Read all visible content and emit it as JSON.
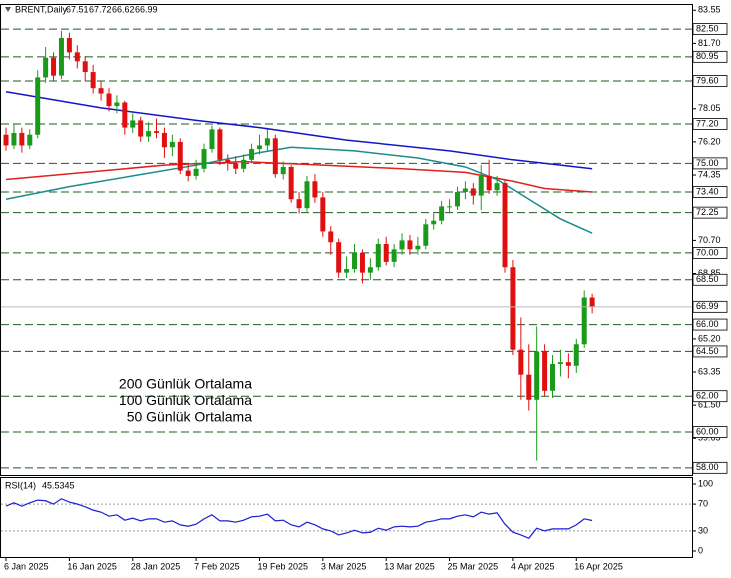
{
  "chart_data": [
    {
      "type": "candlestick",
      "title": "BRENT,Daily",
      "open": [
        76.6,
        76.0,
        76.7,
        76.0,
        76.6,
        79.8,
        80.9,
        79.9,
        82.0,
        81.2,
        80.7,
        80.1,
        79.2,
        78.9,
        78.2,
        78.4,
        77.0,
        77.4,
        76.5,
        76.8,
        76.7,
        75.9,
        76.2,
        74.6,
        74.3,
        74.7,
        75.8,
        76.9,
        75.2,
        75.0,
        74.7,
        75.2,
        75.8,
        76.0,
        76.4,
        74.4,
        74.8,
        73.0,
        72.5,
        74.0,
        73.1,
        71.2,
        70.6,
        68.9,
        69.1,
        70.0,
        68.9,
        69.2,
        70.5,
        69.5,
        70.2,
        70.7,
        70.2,
        70.4,
        71.6,
        71.8,
        72.6,
        72.6,
        73.4,
        73.6,
        73.2,
        74.3,
        73.5,
        73.9,
        69.2,
        64.6,
        63.2,
        61.8,
        64.5,
        62.3,
        63.8,
        63.9,
        63.7,
        64.9,
        67.51
      ],
      "high": [
        77.0,
        77.2,
        77.0,
        76.9,
        80.2,
        81.5,
        81.2,
        82.4,
        82.3,
        81.6,
        81.0,
        80.5,
        79.6,
        79.2,
        78.8,
        78.5,
        77.8,
        77.6,
        77.3,
        77.5,
        77.0,
        76.6,
        76.4,
        75.0,
        75.2,
        76.1,
        77.1,
        77.0,
        75.5,
        75.4,
        75.5,
        76.1,
        76.6,
        76.9,
        76.6,
        75.1,
        74.9,
        73.4,
        74.3,
        74.4,
        73.4,
        71.5,
        70.8,
        69.8,
        70.5,
        70.2,
        69.7,
        70.8,
        70.9,
        70.5,
        71.1,
        71.0,
        70.9,
        71.9,
        72.2,
        72.9,
        73.0,
        73.7,
        74.0,
        73.9,
        74.9,
        75.2,
        74.3,
        74.1,
        69.6,
        66.4,
        64.9,
        65.9,
        64.9,
        64.3,
        64.6,
        64.4,
        65.2,
        67.9,
        67.72
      ],
      "low": [
        75.7,
        75.8,
        75.6,
        75.8,
        76.4,
        79.5,
        79.6,
        79.7,
        80.8,
        80.3,
        79.6,
        78.9,
        78.5,
        77.9,
        77.8,
        76.6,
        76.7,
        76.2,
        76.2,
        76.4,
        75.3,
        75.4,
        74.4,
        74.0,
        74.1,
        74.5,
        75.6,
        74.9,
        74.6,
        74.4,
        74.5,
        75.0,
        75.5,
        75.7,
        74.2,
        74.1,
        72.8,
        72.2,
        72.3,
        72.8,
        70.9,
        69.9,
        68.6,
        68.6,
        68.9,
        68.3,
        68.5,
        69.0,
        69.3,
        69.2,
        69.9,
        69.9,
        69.9,
        70.2,
        71.3,
        71.6,
        72.2,
        72.4,
        73.0,
        72.7,
        72.4,
        73.3,
        73.2,
        68.9,
        64.3,
        61.8,
        61.2,
        58.4,
        62.0,
        61.9,
        63.1,
        63.0,
        63.3,
        64.7,
        66.62
      ],
      "close": [
        76.0,
        76.7,
        76.0,
        76.6,
        79.8,
        80.9,
        79.9,
        82.0,
        81.2,
        80.7,
        80.1,
        79.2,
        78.9,
        78.2,
        78.4,
        77.0,
        77.4,
        76.5,
        76.8,
        76.7,
        75.9,
        76.2,
        74.6,
        74.3,
        74.7,
        75.8,
        76.9,
        75.2,
        75.0,
        74.7,
        75.2,
        75.8,
        76.0,
        76.4,
        74.4,
        74.8,
        73.0,
        72.5,
        74.0,
        73.1,
        71.2,
        70.6,
        68.9,
        69.1,
        70.0,
        68.9,
        69.2,
        70.5,
        69.5,
        70.2,
        70.7,
        70.2,
        70.4,
        71.6,
        71.8,
        72.6,
        72.6,
        73.4,
        73.6,
        73.2,
        74.3,
        73.5,
        73.9,
        69.2,
        64.6,
        63.2,
        61.8,
        64.5,
        62.3,
        63.8,
        63.9,
        63.7,
        64.9,
        67.51,
        66.99
      ],
      "up_color": "#1a9a1a",
      "down_color": "#e01010",
      "series": [
        {
          "name": "200 Günlük Ortalama",
          "color": "#1515c8",
          "x": [
            0,
            12,
            24,
            32,
            43,
            56,
            64,
            70,
            74
          ],
          "values": [
            79.0,
            78.1,
            77.4,
            77.0,
            76.3,
            75.7,
            75.2,
            74.9,
            74.7
          ]
        },
        {
          "name": "100 Günlük Ortalama",
          "color": "#e0201a",
          "x": [
            0,
            10,
            20,
            30,
            40,
            50,
            58,
            64,
            68,
            74
          ],
          "values": [
            74.1,
            74.5,
            74.9,
            75.1,
            74.9,
            74.7,
            74.5,
            74.0,
            73.6,
            73.4
          ]
        },
        {
          "name": "50 Günlük Ortalama",
          "color": "#1a8c8c",
          "x": [
            0,
            8,
            16,
            24,
            32,
            36,
            44,
            52,
            58,
            62,
            66,
            70,
            74
          ],
          "values": [
            73.0,
            73.7,
            74.3,
            74.9,
            75.6,
            75.9,
            75.7,
            75.3,
            74.8,
            74.1,
            73.0,
            71.9,
            71.1
          ]
        }
      ],
      "xlim": [
        -0.76,
        86.61
      ],
      "ylim": [
        57.6,
        83.9
      ],
      "yticks": [
        {
          "value": 83.55,
          "label": "83.55"
        },
        {
          "value": 81.7,
          "label": "81.70"
        },
        {
          "value": 78.05,
          "label": "78.05"
        },
        {
          "value": 76.2,
          "label": "76.20"
        },
        {
          "value": 74.35,
          "label": "74.35"
        },
        {
          "value": 70.7,
          "label": "70.70"
        },
        {
          "value": 68.85,
          "label": "68.85"
        },
        {
          "value": 65.2,
          "label": "65.20"
        },
        {
          "value": 63.35,
          "label": "63.35"
        },
        {
          "value": 61.5,
          "label": "61.50"
        },
        {
          "value": 59.65,
          "label": "59.65"
        }
      ],
      "levels": [
        {
          "value": 82.5,
          "label": "82.50"
        },
        {
          "value": 80.95,
          "label": "80.95"
        },
        {
          "value": 79.6,
          "label": "79.60"
        },
        {
          "value": 77.2,
          "label": "77.20"
        },
        {
          "value": 75,
          "label": "75.00"
        },
        {
          "value": 73.4,
          "label": "73.40"
        },
        {
          "value": 72.25,
          "label": "72.25"
        },
        {
          "value": 70,
          "label": "70.00"
        },
        {
          "value": 68.5,
          "label": "68.50"
        },
        {
          "value": 66,
          "label": "66.00"
        },
        {
          "value": 64.5,
          "label": "64.50"
        },
        {
          "value": 62,
          "label": "62.00"
        },
        {
          "value": 60,
          "label": "60.00"
        },
        {
          "value": 58,
          "label": "58.00"
        }
      ],
      "level_color": "#1e5a1e"
    },
    {
      "type": "line",
      "title": "RSI(14)",
      "color": "#1c1cd0",
      "values": [
        67,
        72,
        67,
        72,
        76,
        75,
        70,
        78,
        73,
        70,
        66,
        61,
        58,
        52,
        54,
        46,
        49,
        45,
        48,
        48,
        43,
        45,
        39,
        37,
        40,
        48,
        54,
        45,
        45,
        43,
        46,
        51,
        52,
        55,
        45,
        46,
        39,
        36,
        43,
        39,
        33,
        30,
        24,
        27,
        31,
        27,
        28,
        34,
        31,
        36,
        37,
        36,
        37,
        43,
        45,
        48,
        48,
        52,
        54,
        51,
        58,
        55,
        57,
        40,
        28,
        24,
        19,
        34,
        30,
        33,
        33,
        33,
        39,
        48,
        45.5345
      ],
      "xlim": [
        -0.76,
        86.61
      ],
      "ylim": [
        -9,
        109
      ],
      "yticks": [
        100,
        70,
        30,
        0
      ],
      "reference_lines": [
        70,
        30
      ],
      "xticks": [
        {
          "value": 0,
          "label": "6 Jan 2025"
        },
        {
          "value": 8,
          "label": "16 Jan 2025"
        },
        {
          "value": 16,
          "label": "28 Jan 2025"
        },
        {
          "value": 24,
          "label": "7 Feb 2025"
        },
        {
          "value": 32,
          "label": "19 Feb 2025"
        },
        {
          "value": 40,
          "label": "3 Mar 2025"
        },
        {
          "value": 48,
          "label": "13 Mar 2025"
        },
        {
          "value": 56,
          "label": "25 Mar 2025"
        },
        {
          "value": 64,
          "label": "4 Apr 2025"
        },
        {
          "value": 72,
          "label": "16 Apr 2025"
        }
      ]
    }
  ]
}
